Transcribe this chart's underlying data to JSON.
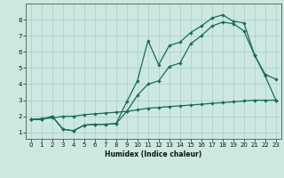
{
  "xlabel": "Humidex (Indice chaleur)",
  "bg_color": "#cce8e0",
  "grid_color": "#aacec8",
  "line_color": "#1a6b5a",
  "xlim": [
    -0.5,
    23.5
  ],
  "ylim": [
    0.6,
    9.0
  ],
  "xticks": [
    0,
    1,
    2,
    3,
    4,
    5,
    6,
    7,
    8,
    9,
    10,
    11,
    12,
    13,
    14,
    15,
    16,
    17,
    18,
    19,
    20,
    21,
    22,
    23
  ],
  "yticks": [
    1,
    2,
    3,
    4,
    5,
    6,
    7,
    8
  ],
  "line1_x": [
    0,
    1,
    2,
    3,
    4,
    5,
    6,
    7,
    8,
    9,
    10,
    11,
    12,
    13,
    14,
    15,
    16,
    17,
    18,
    19,
    20,
    21,
    22,
    23
  ],
  "line1_y": [
    1.8,
    1.85,
    1.9,
    2.0,
    2.0,
    2.1,
    2.15,
    2.2,
    2.25,
    2.3,
    2.4,
    2.5,
    2.55,
    2.6,
    2.65,
    2.7,
    2.75,
    2.8,
    2.85,
    2.9,
    2.95,
    3.0,
    3.0,
    3.0
  ],
  "line2_x": [
    0,
    1,
    2,
    3,
    4,
    5,
    6,
    7,
    8,
    9,
    10,
    11,
    12,
    13,
    14,
    15,
    16,
    17,
    18,
    19,
    20,
    21,
    22,
    23
  ],
  "line2_y": [
    1.8,
    1.8,
    2.0,
    1.2,
    1.1,
    1.45,
    1.5,
    1.5,
    1.55,
    2.3,
    3.3,
    4.0,
    4.2,
    5.1,
    5.3,
    6.5,
    7.0,
    7.6,
    7.85,
    7.75,
    7.3,
    5.8,
    4.6,
    4.3
  ],
  "line3_x": [
    0,
    1,
    2,
    3,
    4,
    5,
    6,
    7,
    8,
    9,
    10,
    11,
    12,
    13,
    14,
    15,
    16,
    17,
    18,
    19,
    20,
    21,
    22,
    23
  ],
  "line3_y": [
    1.8,
    1.8,
    2.0,
    1.2,
    1.1,
    1.45,
    1.5,
    1.5,
    1.55,
    2.9,
    4.2,
    6.7,
    5.2,
    6.4,
    6.6,
    7.2,
    7.6,
    8.1,
    8.3,
    7.9,
    7.8,
    5.8,
    4.5,
    3.0
  ]
}
